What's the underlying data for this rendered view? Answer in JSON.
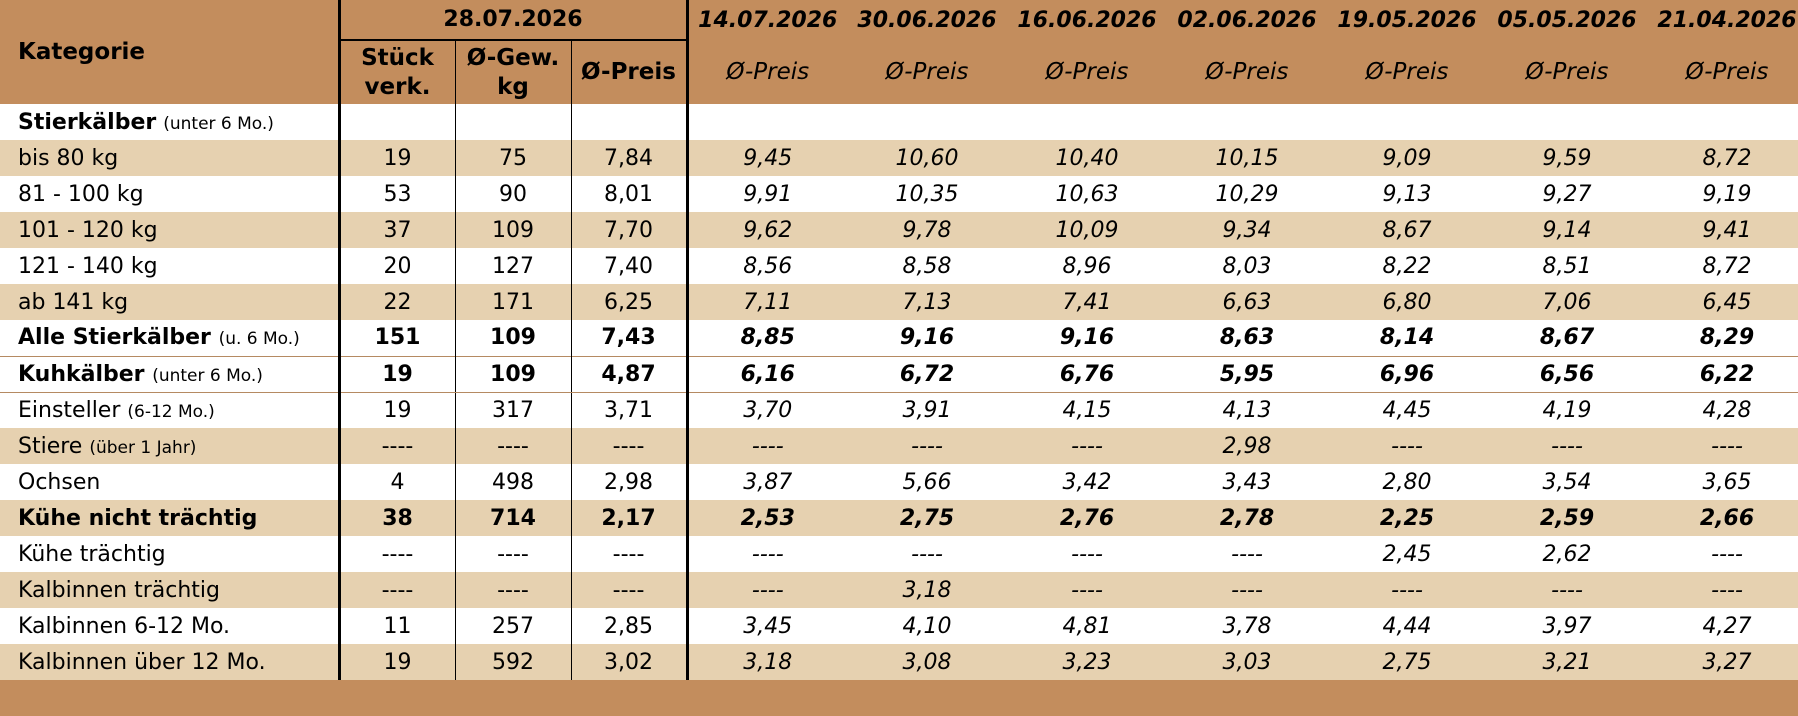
{
  "header": {
    "kategorie_label": "Kategorie",
    "current_date": "28.07.2026",
    "cur_col_labels": [
      "Stück verk.",
      "Ø-Gew. kg",
      "Ø-Preis"
    ],
    "hist_dates": [
      "14.07.2026",
      "30.06.2026",
      "16.06.2026",
      "02.06.2026",
      "19.05.2026",
      "05.05.2026",
      "21.04.2026"
    ],
    "hist_sub_label": "Ø-Preis"
  },
  "section_title": {
    "name": "Stierkälber",
    "note": "(unter 6 Mo.)"
  },
  "rows": [
    {
      "name": "bis 80 kg",
      "note": "",
      "cur": [
        "19",
        "75",
        "7,84"
      ],
      "hist": [
        "9,45",
        "10,60",
        "10,40",
        "10,15",
        "9,09",
        "9,59",
        "8,72"
      ]
    },
    {
      "name": "81 - 100 kg",
      "note": "",
      "cur": [
        "53",
        "90",
        "8,01"
      ],
      "hist": [
        "9,91",
        "10,35",
        "10,63",
        "10,29",
        "9,13",
        "9,27",
        "9,19"
      ]
    },
    {
      "name": "101 - 120 kg",
      "note": "",
      "cur": [
        "37",
        "109",
        "7,70"
      ],
      "hist": [
        "9,62",
        "9,78",
        "10,09",
        "9,34",
        "8,67",
        "9,14",
        "9,41"
      ]
    },
    {
      "name": "121 - 140 kg",
      "note": "",
      "cur": [
        "20",
        "127",
        "7,40"
      ],
      "hist": [
        "8,56",
        "8,58",
        "8,96",
        "8,03",
        "8,22",
        "8,51",
        "8,72"
      ]
    },
    {
      "name": "ab 141 kg",
      "note": "",
      "cur": [
        "22",
        "171",
        "6,25"
      ],
      "hist": [
        "7,11",
        "7,13",
        "7,41",
        "6,63",
        "6,80",
        "7,06",
        "6,45"
      ]
    },
    {
      "name": "Alle Stierkälber",
      "note": "(u. 6 Mo.)",
      "cur": [
        "151",
        "109",
        "7,43"
      ],
      "hist": [
        "8,85",
        "9,16",
        "9,16",
        "8,63",
        "8,14",
        "8,67",
        "8,29"
      ]
    },
    {
      "name": "Kuhkälber",
      "note": "(unter 6 Mo.)",
      "cur": [
        "19",
        "109",
        "4,87"
      ],
      "hist": [
        "6,16",
        "6,72",
        "6,76",
        "5,95",
        "6,96",
        "6,56",
        "6,22"
      ]
    },
    {
      "name": "Einsteller",
      "note": "(6-12 Mo.)",
      "cur": [
        "19",
        "317",
        "3,71"
      ],
      "hist": [
        "3,70",
        "3,91",
        "4,15",
        "4,13",
        "4,45",
        "4,19",
        "4,28"
      ]
    },
    {
      "name": "Stiere",
      "note": "(über 1 Jahr)",
      "cur": [
        "----",
        "----",
        "----"
      ],
      "hist": [
        "----",
        "----",
        "----",
        "2,98",
        "----",
        "----",
        "----"
      ]
    },
    {
      "name": "Ochsen",
      "note": "",
      "cur": [
        "4",
        "498",
        "2,98"
      ],
      "hist": [
        "3,87",
        "5,66",
        "3,42",
        "3,43",
        "2,80",
        "3,54",
        "3,65"
      ]
    },
    {
      "name": "Kühe nicht trächtig",
      "note": "",
      "cur": [
        "38",
        "714",
        "2,17"
      ],
      "hist": [
        "2,53",
        "2,75",
        "2,76",
        "2,78",
        "2,25",
        "2,59",
        "2,66"
      ]
    },
    {
      "name": "Kühe trächtig",
      "note": "",
      "cur": [
        "----",
        "----",
        "----"
      ],
      "hist": [
        "----",
        "----",
        "----",
        "----",
        "2,45",
        "2,62",
        "----"
      ]
    },
    {
      "name": "Kalbinnen trächtig",
      "note": "",
      "cur": [
        "----",
        "----",
        "----"
      ],
      "hist": [
        "----",
        "3,18",
        "----",
        "----",
        "----",
        "----",
        "----"
      ]
    },
    {
      "name": "Kalbinnen 6-12 Mo.",
      "note": "",
      "cur": [
        "11",
        "257",
        "2,85"
      ],
      "hist": [
        "3,45",
        "4,10",
        "4,81",
        "3,78",
        "4,44",
        "3,97",
        "4,27"
      ]
    },
    {
      "name": "Kalbinnen über 12 Mo.",
      "note": "",
      "cur": [
        "19",
        "592",
        "3,02"
      ],
      "hist": [
        "3,18",
        "3,08",
        "3,23",
        "3,03",
        "2,75",
        "3,21",
        "3,27"
      ]
    }
  ],
  "colors": {
    "header": "#c38d5d",
    "shade": "#e6d1b0",
    "row": "#ffffff"
  }
}
